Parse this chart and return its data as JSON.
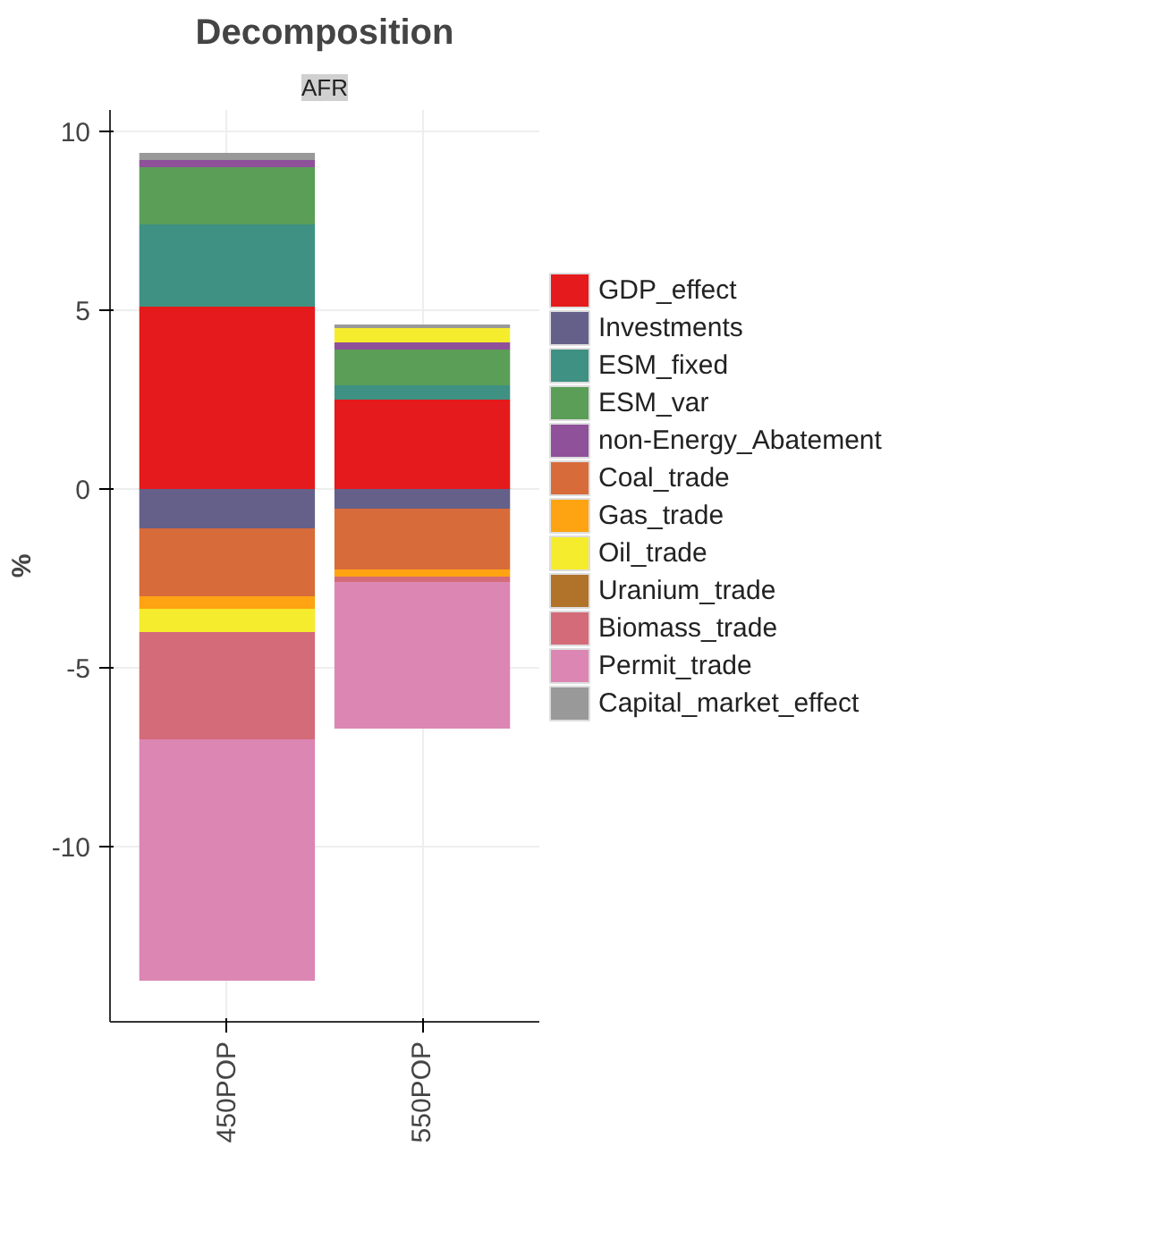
{
  "chart_data": {
    "type": "bar",
    "title": "Decomposition",
    "subtitle": "AFR",
    "ylabel": "%",
    "categories": [
      "450POP",
      "550POP"
    ],
    "stacked": true,
    "series": [
      {
        "name": "GDP_effect",
        "color": "#e41a1c",
        "values": [
          5.1,
          2.5
        ]
      },
      {
        "name": "Investments",
        "color": "#65608a",
        "values": [
          -1.1,
          -0.55
        ]
      },
      {
        "name": "ESM_fixed",
        "color": "#3f9183",
        "values": [
          2.3,
          0.4
        ]
      },
      {
        "name": "ESM_var",
        "color": "#5b9e58",
        "values": [
          1.6,
          1.0
        ]
      },
      {
        "name": "non-Energy_Abatement",
        "color": "#8f519a",
        "values": [
          0.2,
          0.2
        ]
      },
      {
        "name": "Coal_trade",
        "color": "#d86b3a",
        "values": [
          -1.9,
          -1.7
        ]
      },
      {
        "name": "Gas_trade",
        "color": "#fea312",
        "values": [
          -0.35,
          -0.2
        ]
      },
      {
        "name": "Oil_trade",
        "color": "#f5ec2d",
        "values": [
          -0.65,
          0.4
        ]
      },
      {
        "name": "Uranium_trade",
        "color": "#b1722a",
        "values": [
          0,
          0
        ]
      },
      {
        "name": "Biomass_trade",
        "color": "#d36b79",
        "values": [
          -3.0,
          -0.15
        ]
      },
      {
        "name": "Permit_trade",
        "color": "#dc86b3",
        "values": [
          -6.75,
          -4.1
        ]
      },
      {
        "name": "Capital_market_effect",
        "color": "#999999",
        "values": [
          0.2,
          0.1
        ]
      }
    ],
    "ylim": [
      -14.9,
      10.6
    ],
    "yticks": [
      -10,
      -5,
      0,
      5,
      10
    ],
    "grid": true,
    "legend": "right"
  }
}
